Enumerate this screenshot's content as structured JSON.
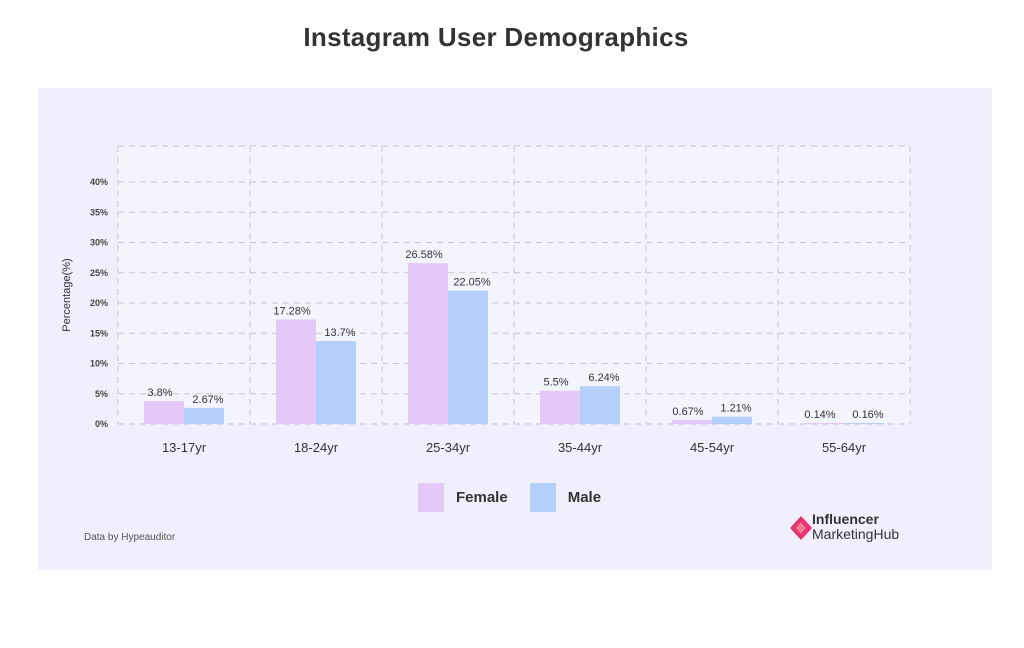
{
  "chart_data": {
    "type": "bar",
    "title": "Instagram User Demographics",
    "ylabel": "Percentage(%)",
    "xlabel": "",
    "categories": [
      "13-17yr",
      "18-24yr",
      "25-34yr",
      "35-44yr",
      "45-54yr",
      "55-64yr"
    ],
    "series": [
      {
        "name": "Female",
        "values": [
          3.8,
          17.28,
          26.58,
          5.5,
          0.67,
          0.14
        ],
        "labels": [
          "3.8%",
          "17.28%",
          "26.58%",
          "5.5%",
          "0.67%",
          "0.14%"
        ],
        "color": "#e3c8f8"
      },
      {
        "name": "Male",
        "values": [
          2.67,
          13.7,
          22.05,
          6.24,
          1.21,
          0.16
        ],
        "labels": [
          "2.67%",
          "13.7%",
          "22.05%",
          "6.24%",
          "1.21%",
          "0.16%"
        ],
        "color": "#b4d0fa"
      }
    ],
    "yticks": [
      {
        "value": 0,
        "label": "0%"
      },
      {
        "value": 5,
        "label": "5%"
      },
      {
        "value": 10,
        "label": "10%"
      },
      {
        "value": 15,
        "label": "15%"
      },
      {
        "value": 20,
        "label": "20%"
      },
      {
        "value": 25,
        "label": "25%"
      },
      {
        "value": 30,
        "label": "30%"
      },
      {
        "value": 35,
        "label": "35%"
      },
      {
        "value": 40,
        "label": "40%"
      }
    ],
    "ylim": [
      0,
      40
    ],
    "grid": true,
    "legend_position": "bottom-center"
  },
  "legend": {
    "female": "Female",
    "male": "Male",
    "female_color": "#e3c8f8",
    "male_color": "#b4d0fa"
  },
  "source_note": "Data by Hypeauditor",
  "logo": {
    "line1": "Influencer",
    "line2": "MarketingHub",
    "mark_color": "#e8336b"
  },
  "colors": {
    "panel_background": "#f0f0fc",
    "grid": "#c8c8d4"
  }
}
